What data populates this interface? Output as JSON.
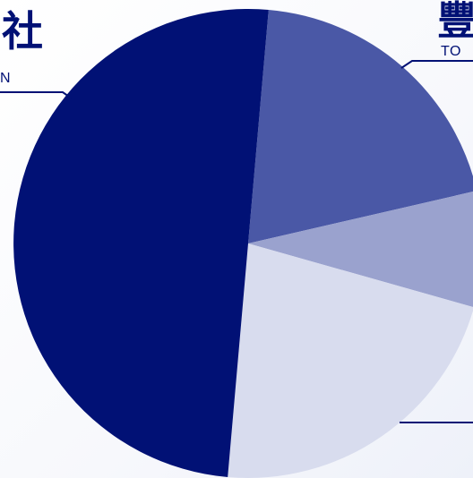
{
  "colors": {
    "slice_dark": "#011175",
    "slice_mid": "#4a58a6",
    "slice_light": "#9aa2ce",
    "slice_pale": "#d8dcee",
    "line": "#011175"
  },
  "labels": {
    "top_left_cjk": "社",
    "top_left_en": "N",
    "top_right_cjk": "豐",
    "top_right_en": "TO"
  },
  "chart_data": {
    "type": "pie",
    "slices": [
      {
        "value": 20,
        "color": "#4a58a6"
      },
      {
        "value": 8,
        "color": "#9aa2ce"
      },
      {
        "value": 22,
        "color": "#d8dcee"
      },
      {
        "value": 50,
        "color": "#011175"
      }
    ],
    "start_angle_deg": 5
  }
}
